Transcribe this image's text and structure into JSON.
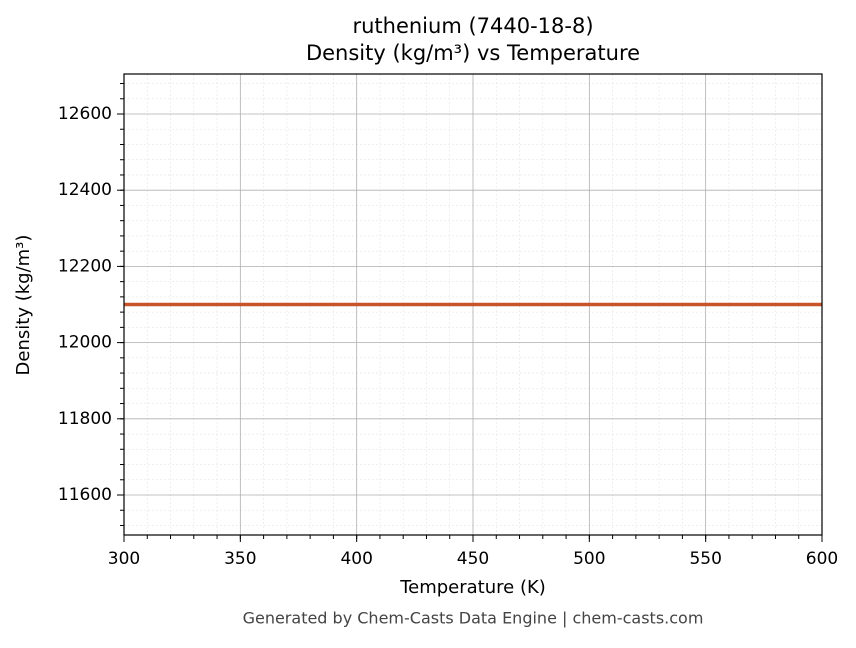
{
  "chart_data": {
    "type": "line",
    "title": "ruthenium (7440-18-8)",
    "subtitle": "Density (kg/m³) vs Temperature",
    "x_label": "Temperature (K)",
    "y_label": "Density (kg/m³)",
    "footer": "Generated by Chem-Casts Data Engine | chem-casts.com",
    "x": [
      300,
      600
    ],
    "series": [
      {
        "name": "Density",
        "color": "#c8552a",
        "values": [
          12100,
          12100
        ]
      }
    ],
    "xlim": [
      300,
      600
    ],
    "ylim": [
      11495,
      12705
    ],
    "xticks": [
      300,
      350,
      400,
      450,
      500,
      550,
      600
    ],
    "yticks": [
      11600,
      11800,
      12000,
      12200,
      12400,
      12600
    ],
    "xminorticks": [
      300,
      310,
      320,
      330,
      340,
      350,
      360,
      370,
      380,
      390,
      400,
      410,
      420,
      430,
      440,
      450,
      460,
      470,
      480,
      490,
      500,
      510,
      520,
      530,
      540,
      550,
      560,
      570,
      580,
      590,
      600
    ],
    "yminorticks": [
      11520,
      11560,
      11600,
      11640,
      11680,
      11720,
      11760,
      11800,
      11840,
      11880,
      11920,
      11960,
      12000,
      12040,
      12080,
      12120,
      12160,
      12200,
      12240,
      12280,
      12320,
      12360,
      12400,
      12440,
      12480,
      12520,
      12560,
      12600,
      12640,
      12680
    ],
    "grid": true
  }
}
